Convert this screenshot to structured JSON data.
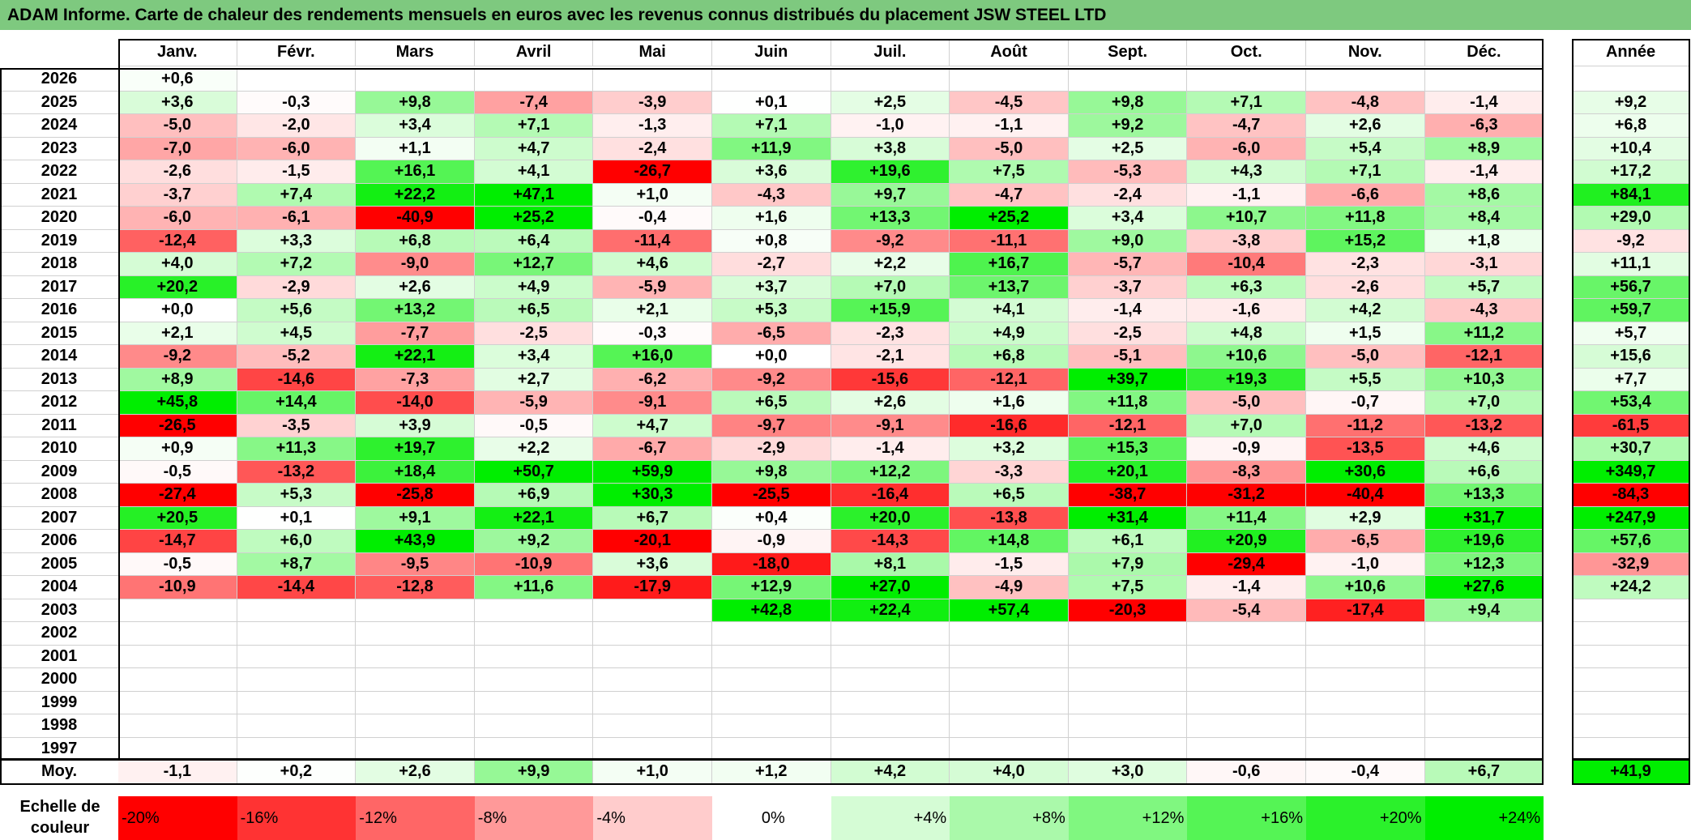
{
  "title": "ADAM Informe. Carte de chaleur des rendements mensuels en euros avec les revenus connus distribués du placement JSW STEEL LTD",
  "chart_data": {
    "type": "heatmap",
    "columns": [
      "Janv.",
      "Févr.",
      "Mars",
      "Avril",
      "Mai",
      "Juin",
      "Juil.",
      "Août",
      "Sept.",
      "Oct.",
      "Nov.",
      "Déc."
    ],
    "year_column": "Année",
    "average_label": "Moy.",
    "rows": [
      {
        "year": "2026",
        "months": [
          "+0,6",
          "",
          "",
          "",
          "",
          "",
          "",
          "",
          "",
          "",
          "",
          ""
        ],
        "annual": ""
      },
      {
        "year": "2025",
        "months": [
          "+3,6",
          "-0,3",
          "+9,8",
          "-7,4",
          "-3,9",
          "+0,1",
          "+2,5",
          "-4,5",
          "+9,8",
          "+7,1",
          "-4,8",
          "-1,4"
        ],
        "annual": "+9,2"
      },
      {
        "year": "2024",
        "months": [
          "-5,0",
          "-2,0",
          "+3,4",
          "+7,1",
          "-1,3",
          "+7,1",
          "-1,0",
          "-1,1",
          "+9,2",
          "-4,7",
          "+2,6",
          "-6,3"
        ],
        "annual": "+6,8"
      },
      {
        "year": "2023",
        "months": [
          "-7,0",
          "-6,0",
          "+1,1",
          "+4,7",
          "-2,4",
          "+11,9",
          "+3,8",
          "-5,0",
          "+2,5",
          "-6,0",
          "+5,4",
          "+8,9"
        ],
        "annual": "+10,4"
      },
      {
        "year": "2022",
        "months": [
          "-2,6",
          "-1,5",
          "+16,1",
          "+4,1",
          "-26,7",
          "+3,6",
          "+19,6",
          "+7,5",
          "-5,3",
          "+4,3",
          "+7,1",
          "-1,4"
        ],
        "annual": "+17,2"
      },
      {
        "year": "2021",
        "months": [
          "-3,7",
          "+7,4",
          "+22,2",
          "+47,1",
          "+1,0",
          "-4,3",
          "+9,7",
          "-4,7",
          "-2,4",
          "-1,1",
          "-6,6",
          "+8,6"
        ],
        "annual": "+84,1"
      },
      {
        "year": "2020",
        "months": [
          "-6,0",
          "-6,1",
          "-40,9",
          "+25,2",
          "-0,4",
          "+1,6",
          "+13,3",
          "+25,2",
          "+3,4",
          "+10,7",
          "+11,8",
          "+8,4"
        ],
        "annual": "+29,0"
      },
      {
        "year": "2019",
        "months": [
          "-12,4",
          "+3,3",
          "+6,8",
          "+6,4",
          "-11,4",
          "+0,8",
          "-9,2",
          "-11,1",
          "+9,0",
          "-3,8",
          "+15,2",
          "+1,8"
        ],
        "annual": "-9,2"
      },
      {
        "year": "2018",
        "months": [
          "+4,0",
          "+7,2",
          "-9,0",
          "+12,7",
          "+4,6",
          "-2,7",
          "+2,2",
          "+16,7",
          "-5,7",
          "-10,4",
          "-2,3",
          "-3,1"
        ],
        "annual": "+11,1"
      },
      {
        "year": "2017",
        "months": [
          "+20,2",
          "-2,9",
          "+2,6",
          "+4,9",
          "-5,9",
          "+3,7",
          "+7,0",
          "+13,7",
          "-3,7",
          "+6,3",
          "-2,6",
          "+5,7"
        ],
        "annual": "+56,7"
      },
      {
        "year": "2016",
        "months": [
          "+0,0",
          "+5,6",
          "+13,2",
          "+6,5",
          "+2,1",
          "+5,3",
          "+15,9",
          "+4,1",
          "-1,4",
          "-1,6",
          "+4,2",
          "-4,3"
        ],
        "annual": "+59,7"
      },
      {
        "year": "2015",
        "months": [
          "+2,1",
          "+4,5",
          "-7,7",
          "-2,5",
          "-0,3",
          "-6,5",
          "-2,3",
          "+4,9",
          "-2,5",
          "+4,8",
          "+1,5",
          "+11,2"
        ],
        "annual": "+5,7"
      },
      {
        "year": "2014",
        "months": [
          "-9,2",
          "-5,2",
          "+22,1",
          "+3,4",
          "+16,0",
          "+0,0",
          "-2,1",
          "+6,8",
          "-5,1",
          "+10,6",
          "-5,0",
          "-12,1"
        ],
        "annual": "+15,6"
      },
      {
        "year": "2013",
        "months": [
          "+8,9",
          "-14,6",
          "-7,3",
          "+2,7",
          "-6,2",
          "-9,2",
          "-15,6",
          "-12,1",
          "+39,7",
          "+19,3",
          "+5,5",
          "+10,3"
        ],
        "annual": "+7,7"
      },
      {
        "year": "2012",
        "months": [
          "+45,8",
          "+14,4",
          "-14,0",
          "-5,9",
          "-9,1",
          "+6,5",
          "+2,6",
          "+1,6",
          "+11,8",
          "-5,0",
          "-0,7",
          "+7,0"
        ],
        "annual": "+53,4"
      },
      {
        "year": "2011",
        "months": [
          "-26,5",
          "-3,5",
          "+3,9",
          "-0,5",
          "+4,7",
          "-9,7",
          "-9,1",
          "-16,6",
          "-12,1",
          "+7,0",
          "-11,2",
          "-13,2"
        ],
        "annual": "-61,5"
      },
      {
        "year": "2010",
        "months": [
          "+0,9",
          "+11,3",
          "+19,7",
          "+2,2",
          "-6,7",
          "-2,9",
          "-1,4",
          "+3,2",
          "+15,3",
          "-0,9",
          "-13,5",
          "+4,6"
        ],
        "annual": "+30,7"
      },
      {
        "year": "2009",
        "months": [
          "-0,5",
          "-13,2",
          "+18,4",
          "+50,7",
          "+59,9",
          "+9,8",
          "+12,2",
          "-3,3",
          "+20,1",
          "-8,3",
          "+30,6",
          "+6,6"
        ],
        "annual": "+349,7"
      },
      {
        "year": "2008",
        "months": [
          "-27,4",
          "+5,3",
          "-25,8",
          "+6,9",
          "+30,3",
          "-25,5",
          "-16,4",
          "+6,5",
          "-38,7",
          "-31,2",
          "-40,4",
          "+13,3"
        ],
        "annual": "-84,3"
      },
      {
        "year": "2007",
        "months": [
          "+20,5",
          "+0,1",
          "+9,1",
          "+22,1",
          "+6,7",
          "+0,4",
          "+20,0",
          "-13,8",
          "+31,4",
          "+11,4",
          "+2,9",
          "+31,7"
        ],
        "annual": "+247,9"
      },
      {
        "year": "2006",
        "months": [
          "-14,7",
          "+6,0",
          "+43,9",
          "+9,2",
          "-20,1",
          "-0,9",
          "-14,3",
          "+14,8",
          "+6,1",
          "+20,9",
          "-6,5",
          "+19,6"
        ],
        "annual": "+57,6"
      },
      {
        "year": "2005",
        "months": [
          "-0,5",
          "+8,7",
          "-9,5",
          "-10,9",
          "+3,6",
          "-18,0",
          "+8,1",
          "-1,5",
          "+7,9",
          "-29,4",
          "-1,0",
          "+12,3"
        ],
        "annual": "-32,9"
      },
      {
        "year": "2004",
        "months": [
          "-10,9",
          "-14,4",
          "-12,8",
          "+11,6",
          "-17,9",
          "+12,9",
          "+27,0",
          "-4,9",
          "+7,5",
          "-1,4",
          "+10,6",
          "+27,6"
        ],
        "annual": "+24,2"
      },
      {
        "year": "2003",
        "months": [
          "",
          "",
          "",
          "",
          "",
          "+42,8",
          "+22,4",
          "+57,4",
          "-20,3",
          "-5,4",
          "-17,4",
          "+9,4"
        ],
        "annual": ""
      },
      {
        "year": "2002",
        "months": [
          "",
          "",
          "",
          "",
          "",
          "",
          "",
          "",
          "",
          "",
          "",
          ""
        ],
        "annual": ""
      },
      {
        "year": "2001",
        "months": [
          "",
          "",
          "",
          "",
          "",
          "",
          "",
          "",
          "",
          "",
          "",
          ""
        ],
        "annual": ""
      },
      {
        "year": "2000",
        "months": [
          "",
          "",
          "",
          "",
          "",
          "",
          "",
          "",
          "",
          "",
          "",
          ""
        ],
        "annual": ""
      },
      {
        "year": "1999",
        "months": [
          "",
          "",
          "",
          "",
          "",
          "",
          "",
          "",
          "",
          "",
          "",
          ""
        ],
        "annual": ""
      },
      {
        "year": "1998",
        "months": [
          "",
          "",
          "",
          "",
          "",
          "",
          "",
          "",
          "",
          "",
          "",
          ""
        ],
        "annual": ""
      },
      {
        "year": "1997",
        "months": [
          "",
          "",
          "",
          "",
          "",
          "",
          "",
          "",
          "",
          "",
          "",
          ""
        ],
        "annual": ""
      }
    ],
    "averages": [
      "-1,1",
      "+0,2",
      "+2,6",
      "+9,9",
      "+1,0",
      "+1,2",
      "+4,2",
      "+4,0",
      "+3,0",
      "-0,6",
      "-0,4",
      "+6,7"
    ],
    "average_annual": "+41,9",
    "scale_label": "Echelle de couleur",
    "scale": [
      "-20%",
      "-16%",
      "-12%",
      "-8%",
      "-4%",
      "0%",
      "+4%",
      "+8%",
      "+12%",
      "+16%",
      "+20%",
      "+24%"
    ],
    "colors": {
      "negative_max": "#ff0000",
      "neutral": "#ffffff",
      "positive_max": "#00ee00",
      "title_bar": "#7ec97f"
    }
  }
}
